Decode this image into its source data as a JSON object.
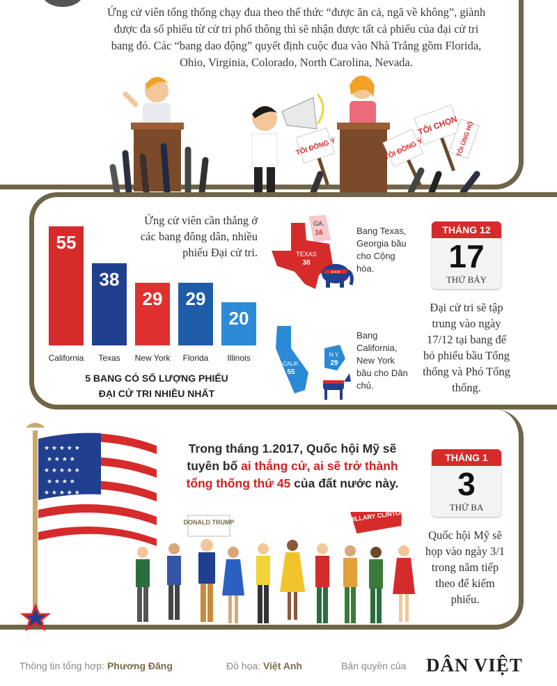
{
  "intro": {
    "text": "Ứng cử viên tổng thống chạy đua theo thể thức “được ăn cả, ngã về không”, giành được đa số phiếu từ cử tri phổ thông thì sẽ nhận được tất cả phiếu của đại cử tri bang đó. Các “bang dao động” quyết định cuộc đua vào Nhà Trắng gồm Florida, Ohio, Virginia, Colorado, North Carolina, Nevada."
  },
  "signs": {
    "toi_dong_y": "TÔI ĐỒNG Ý",
    "toi_chon": "TÔI CHỌN",
    "toi_ung_ho": "TÔI ỦNG HỘ"
  },
  "section2": {
    "note": "Ứng cử viên cần thắng ở các bang đông dân, nhiều phiếu Đại cử tri.",
    "chart_title_1": "5 BANG CÓ SỐ LƯỢNG PHIẾU",
    "chart_title_2": "ĐẠI CỬ TRI NHIỀU NHẤT",
    "map1": {
      "ga_label": "GA.",
      "ga_value": "16",
      "tx_label": "TEXAS",
      "tx_value": "38",
      "caption": "Bang Texas, Georgia bầu cho Cộng hòa."
    },
    "map2": {
      "ca_label": "CALIF.",
      "ca_value": "55",
      "ny_label": "N.Y.",
      "ny_value": "29",
      "caption": "Bang California, New York bầu cho Dân chủ."
    },
    "calendar": {
      "month": "THÁNG 12",
      "day": "17",
      "weekday": "THỨ BẢY"
    },
    "desc": "Đại cử tri sẽ tập trung vào ngày 17/12 tại bang để bỏ phiếu bầu Tổng thống và Phó Tổng thống."
  },
  "chart_data": {
    "type": "bar",
    "categories": [
      "California",
      "Texas",
      "New York",
      "Florida",
      "Illinois"
    ],
    "values": [
      55,
      38,
      29,
      29,
      20
    ],
    "title": "5 BANG CÓ SỐ LƯỢNG PHIẾU ĐẠI CỬ TRI NHIỀU NHẤT",
    "colors": [
      "#d62b2b",
      "#213f8f",
      "#e03131",
      "#1f5ca8",
      "#2b8ad6"
    ]
  },
  "section3": {
    "head_part1": "Trong tháng 1.2017, Quốc hội Mỹ sẽ tuyên bố ",
    "head_red": "ai thắng cử, ai sẽ trở thành tổng thống thứ 45",
    "head_part2": " của đất nước này.",
    "sign_trump": "DONALD TRUMP",
    "sign_clinton": "HILLARY CLINTON",
    "calendar": {
      "month": "THÁNG 1",
      "day": "3",
      "weekday": "THỨ BA"
    },
    "desc": "Quốc hội Mỹ sẽ họp vào ngày 3/1 trong năm tiếp theo để kiểm phiếu."
  },
  "footer": {
    "info_label": "Thông tin tổng hợp:",
    "info_name": "Phương Đăng",
    "graphic_label": "Đồ họa:",
    "graphic_name": "Việt Anh",
    "copyright_label": "Bản quyền của",
    "logo": "DÂN VIỆT"
  },
  "colors": {
    "frame": "#6f6548",
    "red": "#d62b2b",
    "blue": "#213f8f"
  }
}
